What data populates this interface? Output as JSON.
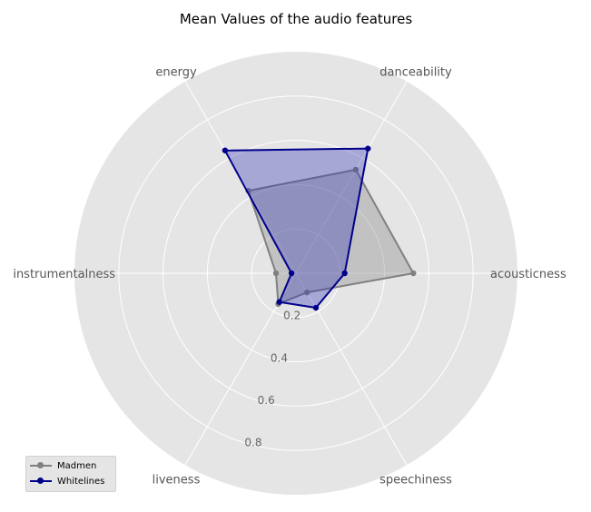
{
  "chart_data": {
    "type": "radar",
    "title": "Mean Values of the audio features",
    "axes": [
      "acousticness",
      "danceability",
      "energy",
      "instrumentalness",
      "liveness",
      "speechiness"
    ],
    "rlim": [
      0,
      1
    ],
    "rticks": [
      "0.2",
      "0.4",
      "0.6",
      "0.8"
    ],
    "grid": true,
    "legend_position": "lower-left",
    "series": [
      {
        "name": "Madmen",
        "color": "#808080",
        "fill": "#808080",
        "values": [
          0.53,
          0.54,
          0.43,
          0.09,
          0.16,
          0.1
        ]
      },
      {
        "name": "Whitelines",
        "color": "#00008b",
        "fill": "#3333bb",
        "values": [
          0.22,
          0.65,
          0.64,
          0.02,
          0.15,
          0.18
        ]
      }
    ]
  }
}
